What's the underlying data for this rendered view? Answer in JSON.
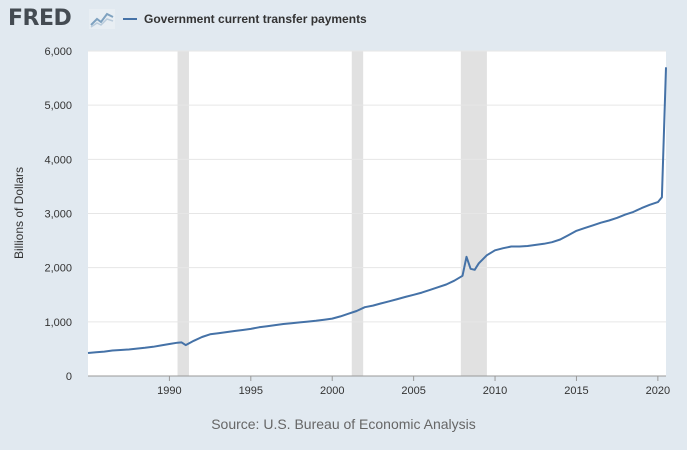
{
  "header": {
    "logo_text": "FRED",
    "legend_label": "Government current transfer payments"
  },
  "source": "Source: U.S. Bureau of Economic Analysis",
  "colors": {
    "series": "#4572a7",
    "recession": "#e1e1e1",
    "plot_bg": "#ffffff",
    "page_bg": "#e1e9f0",
    "grid": "#e6e6e6"
  },
  "chart_data": {
    "type": "line",
    "xlabel": "",
    "ylabel": "Billions of Dollars",
    "xlim": [
      1985.0,
      2020.5
    ],
    "ylim": [
      0,
      6000
    ],
    "x_ticks": [
      1990,
      1995,
      2000,
      2005,
      2010,
      2015,
      2020
    ],
    "y_ticks": [
      0,
      1000,
      2000,
      3000,
      4000,
      5000,
      6000
    ],
    "y_tick_labels": [
      "0",
      "1,000",
      "2,000",
      "3,000",
      "4,000",
      "5,000",
      "6,000"
    ],
    "grid": "horizontal",
    "legend": "top-left",
    "recessions": [
      [
        1990.5,
        1991.2
      ],
      [
        2001.2,
        2001.9
      ],
      [
        2007.9,
        2009.5
      ]
    ],
    "series": [
      {
        "name": "Government current transfer payments",
        "x": [
          1985.0,
          1985.5,
          1986.0,
          1986.5,
          1987.0,
          1987.5,
          1988.0,
          1988.5,
          1989.0,
          1989.5,
          1990.0,
          1990.5,
          1990.75,
          1991.0,
          1991.5,
          1992.0,
          1992.5,
          1993.0,
          1993.5,
          1994.0,
          1994.5,
          1995.0,
          1995.5,
          1996.0,
          1996.5,
          1997.0,
          1997.5,
          1998.0,
          1998.5,
          1999.0,
          1999.5,
          2000.0,
          2000.5,
          2001.0,
          2001.5,
          2002.0,
          2002.5,
          2003.0,
          2003.5,
          2004.0,
          2004.5,
          2005.0,
          2005.5,
          2006.0,
          2006.5,
          2007.0,
          2007.5,
          2008.0,
          2008.25,
          2008.5,
          2008.75,
          2009.0,
          2009.5,
          2010.0,
          2010.5,
          2011.0,
          2011.5,
          2012.0,
          2012.5,
          2013.0,
          2013.5,
          2014.0,
          2014.5,
          2015.0,
          2015.5,
          2016.0,
          2016.5,
          2017.0,
          2017.5,
          2018.0,
          2018.5,
          2019.0,
          2019.5,
          2020.0,
          2020.25,
          2020.5
        ],
        "values": [
          425,
          440,
          450,
          470,
          480,
          490,
          505,
          520,
          540,
          565,
          590,
          615,
          620,
          570,
          650,
          720,
          770,
          790,
          810,
          830,
          850,
          870,
          900,
          920,
          940,
          960,
          975,
          990,
          1005,
          1020,
          1040,
          1060,
          1100,
          1150,
          1200,
          1270,
          1300,
          1340,
          1380,
          1420,
          1460,
          1500,
          1540,
          1590,
          1640,
          1690,
          1760,
          1850,
          2200,
          1980,
          1960,
          2080,
          2230,
          2320,
          2360,
          2390,
          2390,
          2400,
          2420,
          2440,
          2470,
          2520,
          2600,
          2680,
          2730,
          2780,
          2830,
          2870,
          2920,
          2980,
          3030,
          3100,
          3160,
          3210,
          3300,
          5700
        ]
      }
    ]
  }
}
